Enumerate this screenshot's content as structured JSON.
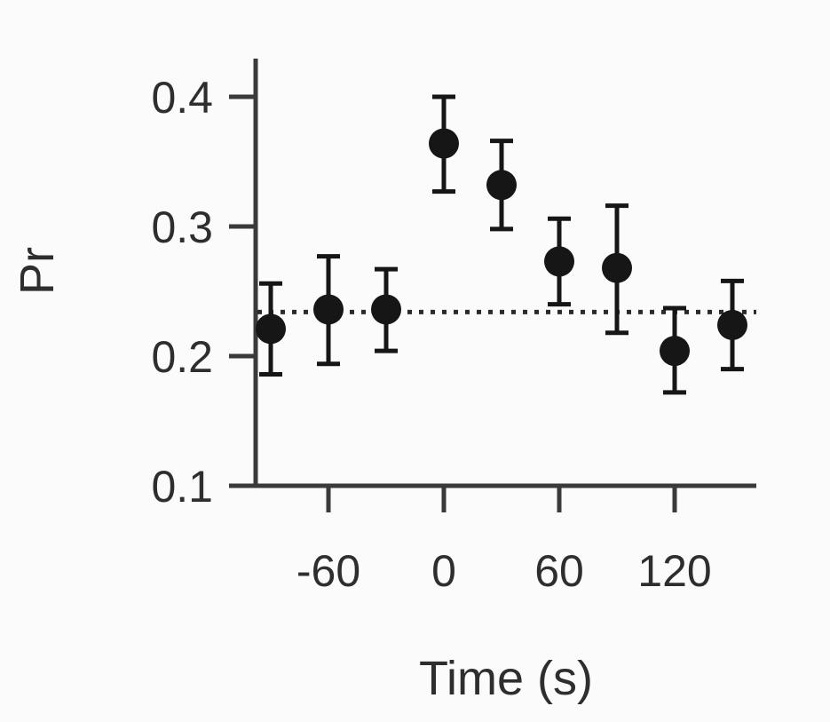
{
  "chart_data": {
    "type": "scatter",
    "xlabel": "Time (s)",
    "ylabel": "Pr",
    "xlim": [
      -105,
      160
    ],
    "ylim": [
      0.1,
      0.43
    ],
    "xticks": [
      -60,
      0,
      60,
      120
    ],
    "xtick_labels": [
      "-60",
      "0",
      "60",
      "120"
    ],
    "yticks": [
      0.1,
      0.2,
      0.3,
      0.4
    ],
    "ytick_labels": [
      "0.1",
      "0.2",
      "0.3",
      "0.4"
    ],
    "reference_line": {
      "y": 0.234,
      "style": "dotted"
    },
    "points": [
      {
        "x": -90,
        "y": 0.221,
        "err_low": 0.186,
        "err_high": 0.256
      },
      {
        "x": -60,
        "y": 0.236,
        "err_low": 0.194,
        "err_high": 0.277
      },
      {
        "x": -30,
        "y": 0.236,
        "err_low": 0.204,
        "err_high": 0.267
      },
      {
        "x": 0,
        "y": 0.364,
        "err_low": 0.327,
        "err_high": 0.4
      },
      {
        "x": 30,
        "y": 0.332,
        "err_low": 0.298,
        "err_high": 0.366
      },
      {
        "x": 60,
        "y": 0.273,
        "err_low": 0.24,
        "err_high": 0.306
      },
      {
        "x": 90,
        "y": 0.268,
        "err_low": 0.218,
        "err_high": 0.316
      },
      {
        "x": 120,
        "y": 0.204,
        "err_low": 0.172,
        "err_high": 0.237
      },
      {
        "x": 150,
        "y": 0.224,
        "err_low": 0.19,
        "err_high": 0.258
      }
    ],
    "colors": {
      "marker": "#161616",
      "axis": "#3a3a3a",
      "text": "#2e2e2e"
    }
  }
}
